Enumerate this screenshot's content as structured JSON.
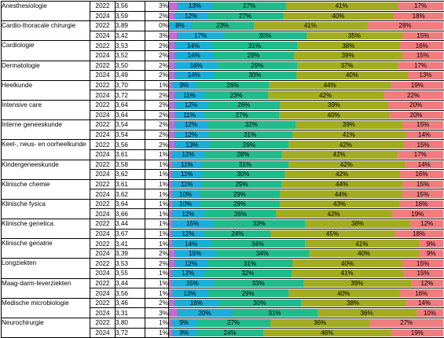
{
  "colors": {
    "segment_low": "#c66bd6",
    "segment_2": "#1aaed8",
    "segment_3": "#20bb8a",
    "segment_4": "#a3ab1f",
    "segment_5": "#f17b7d"
  },
  "chart_data": {
    "type": "bar",
    "orientation": "horizontal",
    "stacked": true,
    "title": "",
    "columns": [
      "specialisme",
      "jaar",
      "score",
      "seg1",
      "seg2",
      "seg3",
      "seg4",
      "seg5"
    ],
    "rows": [
      {
        "specialty": "Anesthesiologie",
        "year": "2022",
        "score": "3,56",
        "values": [
          3,
          13,
          27,
          41,
          17
        ]
      },
      {
        "specialty": "",
        "year": "2024",
        "score": "3,59",
        "values": [
          2,
          12,
          27,
          40,
          18
        ]
      },
      {
        "specialty": "Cardio-thoracale chirurgie",
        "year": "2022",
        "score": "3,89",
        "values": [
          0,
          8,
          23,
          41,
          28
        ]
      },
      {
        "specialty": "",
        "year": "2024",
        "score": "3,42",
        "values": [
          3,
          17,
          30,
          35,
          15
        ]
      },
      {
        "specialty": "Cardiologie",
        "year": "2022",
        "score": "3,53",
        "values": [
          2,
          14,
          31,
          38,
          16
        ]
      },
      {
        "specialty": "",
        "year": "2024",
        "score": "3,52",
        "values": [
          2,
          14,
          29,
          39,
          15
        ]
      },
      {
        "specialty": "Dermatologie",
        "year": "2022",
        "score": "3,50",
        "values": [
          2,
          16,
          29,
          37,
          17
        ]
      },
      {
        "specialty": "",
        "year": "2024",
        "score": "3,49",
        "values": [
          2,
          14,
          30,
          40,
          13
        ]
      },
      {
        "specialty": "Heelkunde",
        "year": "2022",
        "score": "3,70",
        "values": [
          1,
          9,
          26,
          44,
          19
        ]
      },
      {
        "specialty": "",
        "year": "2024",
        "score": "3,72",
        "values": [
          2,
          11,
          23,
          42,
          22
        ]
      },
      {
        "specialty": "Intensive care",
        "year": "2022",
        "score": "3,64",
        "values": [
          2,
          12,
          26,
          39,
          20
        ]
      },
      {
        "specialty": "",
        "year": "2024",
        "score": "3,64",
        "values": [
          2,
          11,
          27,
          40,
          20
        ]
      },
      {
        "specialty": "Interne geneeskunde",
        "year": "2022",
        "score": "3,54",
        "values": [
          2,
          12,
          32,
          39,
          15
        ]
      },
      {
        "specialty": "",
        "year": "2024",
        "score": "3,54",
        "values": [
          2,
          12,
          31,
          41,
          14
        ]
      },
      {
        "specialty": "Keel-, neus-  en oorheelkunde",
        "year": "2022",
        "score": "3,56",
        "values": [
          2,
          13,
          29,
          42,
          15
        ]
      },
      {
        "specialty": "",
        "year": "2024",
        "score": "3,61",
        "values": [
          1,
          12,
          28,
          42,
          17
        ]
      },
      {
        "specialty": "Kindergeneeskunde",
        "year": "2022",
        "score": "3,58",
        "values": [
          1,
          11,
          31,
          42,
          14
        ]
      },
      {
        "specialty": "",
        "year": "2024",
        "score": "3,62",
        "values": [
          1,
          11,
          30,
          42,
          16
        ]
      },
      {
        "specialty": "Klinische chemie",
        "year": "2022",
        "score": "3,61",
        "values": [
          1,
          11,
          29,
          44,
          15
        ]
      },
      {
        "specialty": "",
        "year": "2024",
        "score": "3,62",
        "values": [
          1,
          10,
          29,
          44,
          15
        ]
      },
      {
        "specialty": "Klinische fysica",
        "year": "2022",
        "score": "3,64",
        "values": [
          1,
          10,
          29,
          43,
          16
        ]
      },
      {
        "specialty": "",
        "year": "2024",
        "score": "3,66",
        "values": [
          1,
          12,
          26,
          42,
          19
        ]
      },
      {
        "specialty": "Klinische genetica",
        "year": "2022",
        "score": "3,44",
        "values": [
          1,
          15,
          33,
          38,
          12
        ]
      },
      {
        "specialty": "",
        "year": "2024",
        "score": "3,67",
        "values": [
          1,
          12,
          24,
          45,
          18
        ]
      },
      {
        "specialty": "Klinische geriatrie",
        "year": "2022",
        "score": "3,41",
        "values": [
          1,
          14,
          34,
          41,
          9
        ]
      },
      {
        "specialty": "",
        "year": "2024",
        "score": "3,39",
        "values": [
          2,
          15,
          34,
          40,
          9
        ]
      },
      {
        "specialty": "Longziekten",
        "year": "2022",
        "score": "3,53",
        "values": [
          2,
          12,
          31,
          40,
          15
        ]
      },
      {
        "specialty": "",
        "year": "2024",
        "score": "3,55",
        "values": [
          1,
          12,
          32,
          41,
          15
        ]
      },
      {
        "specialty": "Maag-darm-leverziekten",
        "year": "2022",
        "score": "3,44",
        "values": [
          1,
          15,
          33,
          39,
          12
        ]
      },
      {
        "specialty": "",
        "year": "2024",
        "score": "3,56",
        "values": [
          1,
          13,
          29,
          40,
          16
        ]
      },
      {
        "specialty": "Medische microbiologie",
        "year": "2022",
        "score": "3,46",
        "values": [
          2,
          16,
          30,
          38,
          14
        ]
      },
      {
        "specialty": "",
        "year": "2024",
        "score": "3,31",
        "values": [
          3,
          20,
          31,
          36,
          10
        ]
      },
      {
        "specialty": "Neurochirurgie",
        "year": "2022",
        "score": "3,80",
        "values": [
          1,
          9,
          27,
          36,
          27
        ]
      },
      {
        "specialty": "",
        "year": "2024",
        "score": "3,72",
        "values": [
          1,
          9,
          24,
          46,
          19
        ]
      }
    ]
  }
}
